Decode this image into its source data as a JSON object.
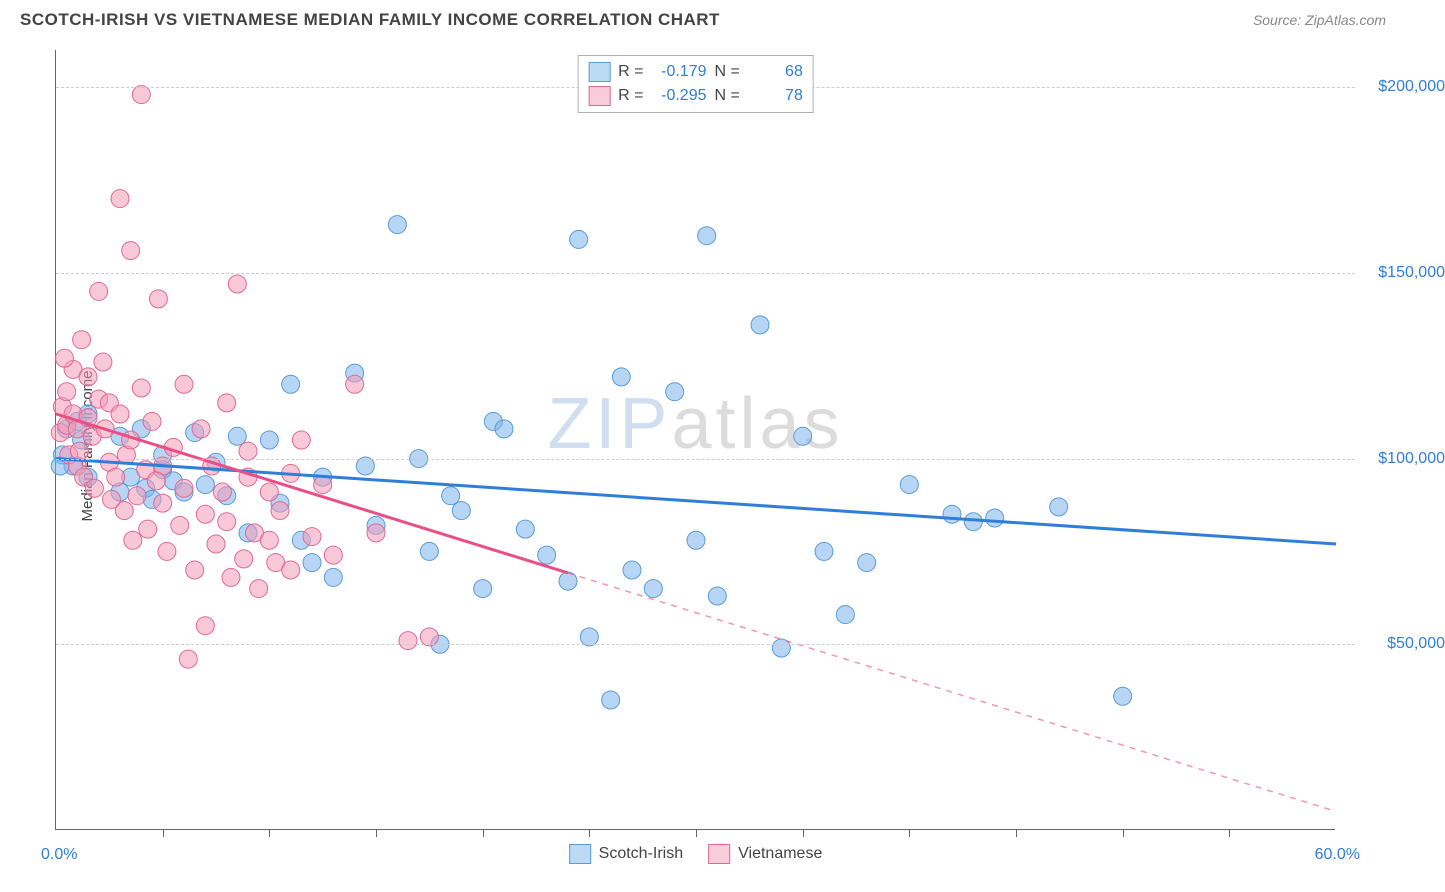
{
  "title": "SCOTCH-IRISH VS VIETNAMESE MEDIAN FAMILY INCOME CORRELATION CHART",
  "source": "Source: ZipAtlas.com",
  "watermark_zip": "ZIP",
  "watermark_atlas": "atlas",
  "ylabel": "Median Family Income",
  "chart": {
    "type": "scatter",
    "xmin": 0.0,
    "xmax": 60.0,
    "xtick_step": 5.0,
    "xlabel_min": "0.0%",
    "xlabel_max": "60.0%",
    "ymin": 0,
    "ymax": 210000,
    "ytick_values": [
      50000,
      100000,
      150000,
      200000
    ],
    "ytick_labels": [
      "$50,000",
      "$100,000",
      "$150,000",
      "$200,000"
    ],
    "background_color": "#ffffff",
    "grid_color": "#cccccc",
    "axis_color": "#666666",
    "tick_label_color": "#2f7ed8",
    "marker_radius": 9,
    "marker_opacity": 0.55,
    "trend_line_width": 3,
    "series": [
      {
        "name": "Scotch-Irish",
        "color": "#7cb5ec",
        "stroke": "#5a9bd4",
        "trend_color": "#2f7ed8",
        "R_label": "R =",
        "R": "-0.179",
        "N_label": "N =",
        "N": "68",
        "trend": {
          "x1": 0,
          "y1": 100000,
          "x2": 60,
          "y2": 77000,
          "solid_to_x": 60
        },
        "points": [
          [
            0.3,
            101000
          ],
          [
            0.5,
            108000
          ],
          [
            0.8,
            98000
          ],
          [
            1.0,
            110000
          ],
          [
            1.2,
            105000
          ],
          [
            1.5,
            112000
          ],
          [
            1.5,
            95000
          ],
          [
            3.0,
            106000
          ],
          [
            3.5,
            95000
          ],
          [
            4.0,
            108000
          ],
          [
            4.2,
            92000
          ],
          [
            4.5,
            89000
          ],
          [
            5.0,
            97000
          ],
          [
            5.5,
            94000
          ],
          [
            6.0,
            91000
          ],
          [
            6.5,
            107000
          ],
          [
            7.0,
            93000
          ],
          [
            7.5,
            99000
          ],
          [
            8.0,
            90000
          ],
          [
            8.5,
            106000
          ],
          [
            9.0,
            80000
          ],
          [
            10.0,
            105000
          ],
          [
            10.5,
            88000
          ],
          [
            11.0,
            120000
          ],
          [
            12.0,
            72000
          ],
          [
            12.5,
            95000
          ],
          [
            13.0,
            68000
          ],
          [
            14.0,
            123000
          ],
          [
            14.5,
            98000
          ],
          [
            15.0,
            82000
          ],
          [
            16.0,
            163000
          ],
          [
            17.0,
            100000
          ],
          [
            17.5,
            75000
          ],
          [
            18.0,
            50000
          ],
          [
            18.5,
            90000
          ],
          [
            19.0,
            86000
          ],
          [
            20.0,
            65000
          ],
          [
            20.5,
            110000
          ],
          [
            21.0,
            108000
          ],
          [
            22.0,
            81000
          ],
          [
            23.0,
            74000
          ],
          [
            24.0,
            67000
          ],
          [
            24.5,
            159000
          ],
          [
            25.0,
            52000
          ],
          [
            26.0,
            35000
          ],
          [
            26.5,
            122000
          ],
          [
            27.0,
            70000
          ],
          [
            28.0,
            65000
          ],
          [
            29.0,
            118000
          ],
          [
            30.0,
            78000
          ],
          [
            30.5,
            160000
          ],
          [
            31.0,
            63000
          ],
          [
            33.0,
            136000
          ],
          [
            34.0,
            49000
          ],
          [
            35.0,
            106000
          ],
          [
            36.0,
            75000
          ],
          [
            37.0,
            58000
          ],
          [
            38.0,
            72000
          ],
          [
            40.0,
            93000
          ],
          [
            42.0,
            85000
          ],
          [
            43.0,
            83000
          ],
          [
            44.0,
            84000
          ],
          [
            47.0,
            87000
          ],
          [
            50.0,
            36000
          ],
          [
            3.0,
            91000
          ],
          [
            5.0,
            101000
          ],
          [
            11.5,
            78000
          ],
          [
            0.2,
            98000
          ]
        ]
      },
      {
        "name": "Vietnamese",
        "color": "#f49ab6",
        "stroke": "#e06997",
        "trend_color": "#e94f86",
        "R_label": "R =",
        "R": "-0.295",
        "N_label": "N =",
        "N": "78",
        "trend": {
          "x1": 0,
          "y1": 112000,
          "x2": 60,
          "y2": 5000,
          "solid_to_x": 24
        },
        "points": [
          [
            0.2,
            107000
          ],
          [
            0.3,
            114000
          ],
          [
            0.5,
            109000
          ],
          [
            0.5,
            118000
          ],
          [
            0.6,
            101000
          ],
          [
            0.8,
            112000
          ],
          [
            0.8,
            124000
          ],
          [
            1.0,
            98000
          ],
          [
            1.0,
            108000
          ],
          [
            1.2,
            132000
          ],
          [
            1.3,
            95000
          ],
          [
            1.5,
            111000
          ],
          [
            1.5,
            122000
          ],
          [
            1.7,
            106000
          ],
          [
            1.8,
            92000
          ],
          [
            2.0,
            145000
          ],
          [
            2.0,
            116000
          ],
          [
            2.2,
            126000
          ],
          [
            2.3,
            108000
          ],
          [
            2.5,
            99000
          ],
          [
            2.5,
            115000
          ],
          [
            2.8,
            95000
          ],
          [
            3.0,
            170000
          ],
          [
            3.0,
            112000
          ],
          [
            3.2,
            86000
          ],
          [
            3.3,
            101000
          ],
          [
            3.5,
            156000
          ],
          [
            3.5,
            105000
          ],
          [
            3.8,
            90000
          ],
          [
            4.0,
            198000
          ],
          [
            4.0,
            119000
          ],
          [
            4.2,
            97000
          ],
          [
            4.3,
            81000
          ],
          [
            4.5,
            110000
          ],
          [
            4.8,
            143000
          ],
          [
            5.0,
            98000
          ],
          [
            5.0,
            88000
          ],
          [
            5.2,
            75000
          ],
          [
            5.5,
            103000
          ],
          [
            5.8,
            82000
          ],
          [
            6.0,
            92000
          ],
          [
            6.0,
            120000
          ],
          [
            6.2,
            46000
          ],
          [
            6.5,
            70000
          ],
          [
            6.8,
            108000
          ],
          [
            7.0,
            85000
          ],
          [
            7.0,
            55000
          ],
          [
            7.3,
            98000
          ],
          [
            7.5,
            77000
          ],
          [
            7.8,
            91000
          ],
          [
            8.0,
            83000
          ],
          [
            8.0,
            115000
          ],
          [
            8.2,
            68000
          ],
          [
            8.5,
            147000
          ],
          [
            8.8,
            73000
          ],
          [
            9.0,
            95000
          ],
          [
            9.0,
            102000
          ],
          [
            9.3,
            80000
          ],
          [
            9.5,
            65000
          ],
          [
            10.0,
            78000
          ],
          [
            10.0,
            91000
          ],
          [
            10.3,
            72000
          ],
          [
            10.5,
            86000
          ],
          [
            11.0,
            96000
          ],
          [
            11.0,
            70000
          ],
          [
            11.5,
            105000
          ],
          [
            12.0,
            79000
          ],
          [
            12.5,
            93000
          ],
          [
            13.0,
            74000
          ],
          [
            14.0,
            120000
          ],
          [
            15.0,
            80000
          ],
          [
            16.5,
            51000
          ],
          [
            17.5,
            52000
          ],
          [
            0.4,
            127000
          ],
          [
            1.1,
            102000
          ],
          [
            2.6,
            89000
          ],
          [
            3.6,
            78000
          ],
          [
            4.7,
            94000
          ]
        ]
      }
    ]
  }
}
